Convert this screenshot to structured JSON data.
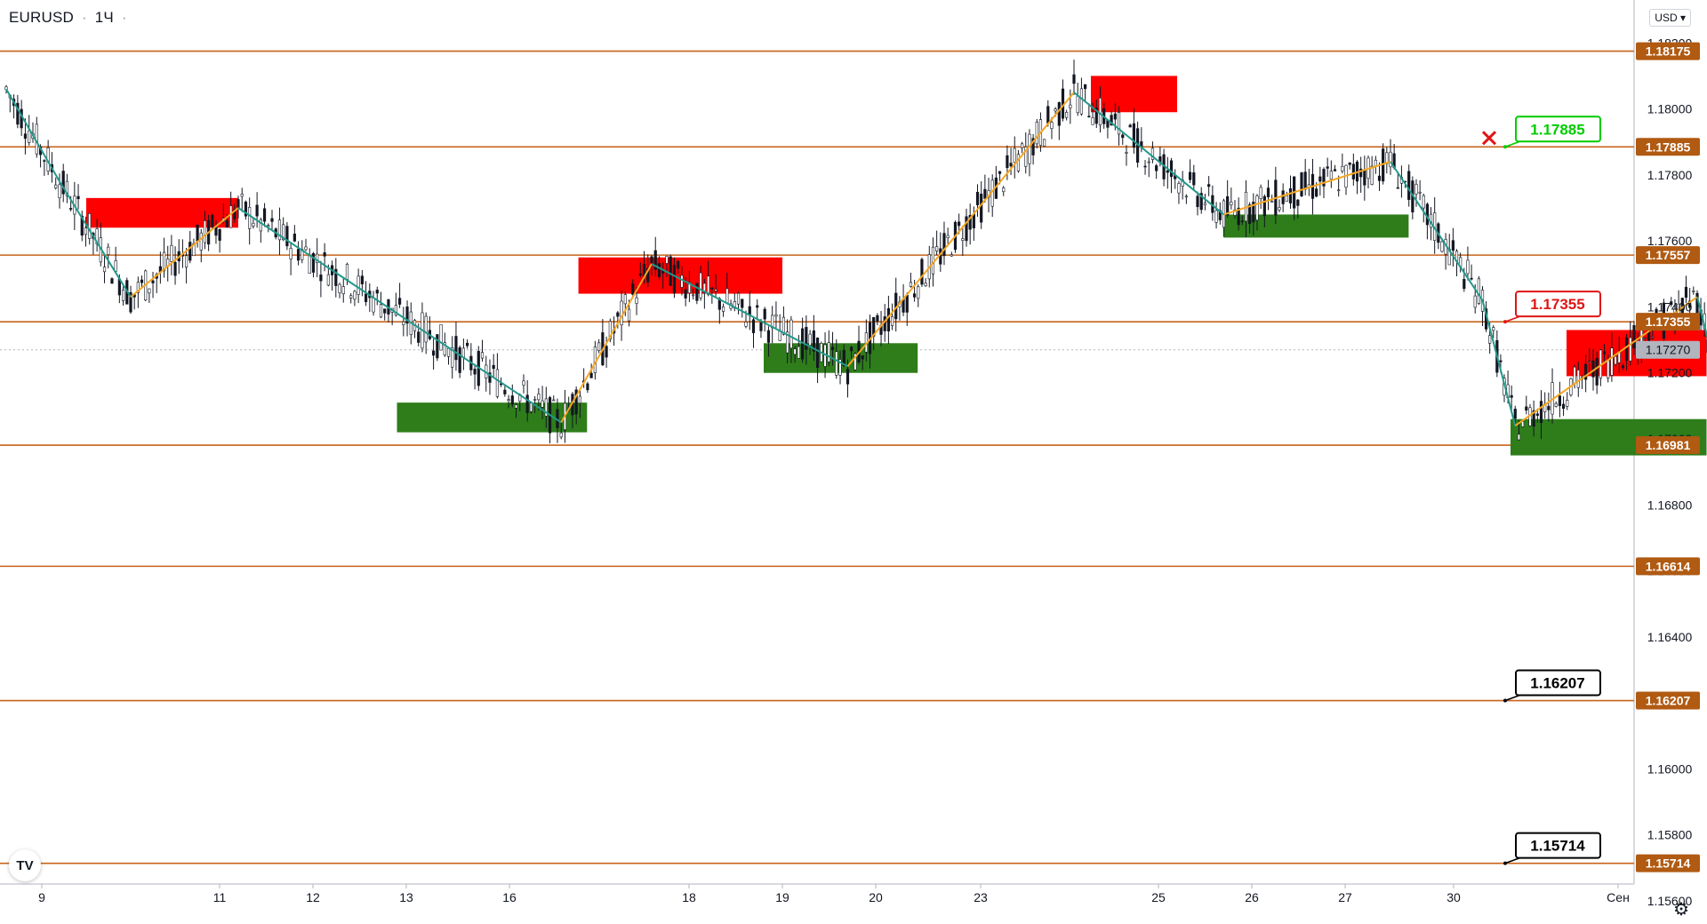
{
  "header": {
    "symbol": "EURUSD",
    "separator": "·",
    "timeframe": "1Ч",
    "extra": "·"
  },
  "currency_button": "USD",
  "logo_text": "TV",
  "settings_icon": "gear-icon",
  "colors": {
    "level_line": "#c8631a",
    "level_label_bg": "#b05a12",
    "current_price_bg": "#b2b5be",
    "supply_zone": "#ff0000",
    "demand_zone": "#2e7d1a",
    "zigzag_up": "#f5a623",
    "zigzag_down": "#22998b",
    "projection": "#1616d8",
    "target_green": "#00cc00",
    "target_red": "#e01515",
    "target_black": "#000000",
    "candle": "#131722"
  },
  "chart_data": {
    "type": "candlestick",
    "symbol": "EURUSD",
    "timeframe": "1H",
    "y_axis": {
      "range": [
        1.1553,
        1.1833
      ],
      "ticks": [
        "1.18200",
        "1.18000",
        "1.17800",
        "1.17600",
        "1.17400",
        "1.17200",
        "1.17000",
        "1.16800",
        "1.16600",
        "1.16400",
        "1.16200",
        "1.16000",
        "1.15800",
        "1.15600"
      ]
    },
    "x_axis": {
      "ticks": [
        "9",
        "11",
        "12",
        "13",
        "16",
        "18",
        "19",
        "20",
        "23",
        "25",
        "26",
        "27",
        "30",
        "Сен"
      ]
    },
    "current_price": "1.17270",
    "levels": [
      {
        "price": 1.18175,
        "label": "1.18175"
      },
      {
        "price": 1.17885,
        "label": "1.17885"
      },
      {
        "price": 1.17557,
        "label": "1.17557"
      },
      {
        "price": 1.17355,
        "label": "1.17355"
      },
      {
        "price": 1.16981,
        "label": "1.16981"
      },
      {
        "price": 1.16614,
        "label": "1.16614"
      },
      {
        "price": 1.16207,
        "label": "1.16207"
      },
      {
        "price": 1.15714,
        "label": "1.15714"
      }
    ],
    "target_labels": [
      {
        "label": "1.17885",
        "price": 1.17885,
        "style": "green",
        "marker": "x"
      },
      {
        "label": "1.17355",
        "price": 1.17355,
        "style": "red"
      },
      {
        "label": "1.16207",
        "price": 1.16207,
        "style": "black"
      },
      {
        "label": "1.15714",
        "price": 1.15714,
        "style": "black"
      }
    ],
    "supply_zones": [
      {
        "x0": 0.5,
        "x1": 2.2,
        "y_hi": 1.1773,
        "y_lo": 1.1764
      },
      {
        "x0": 5.8,
        "x1": 8.0,
        "y_hi": 1.1755,
        "y_lo": 1.1744
      },
      {
        "x0": 11.2,
        "x1": 12.2,
        "y_hi": 1.181,
        "y_lo": 1.1799
      },
      {
        "x0": 16.4,
        "x1": 17.9,
        "y_hi": 1.1733,
        "y_lo": 1.1719
      }
    ],
    "demand_zones": [
      {
        "x0": 3.9,
        "x1": 5.9,
        "y_hi": 1.1711,
        "y_lo": 1.1702
      },
      {
        "x0": 7.8,
        "x1": 9.4,
        "y_hi": 1.1729,
        "y_lo": 1.172
      },
      {
        "x0": 12.7,
        "x1": 14.7,
        "y_hi": 1.1768,
        "y_lo": 1.1761
      },
      {
        "x0": 15.8,
        "x1": 17.9,
        "y_hi": 1.1706,
        "y_lo": 1.1695
      },
      {
        "x0": 18.5,
        "x1": 21.5,
        "y_hi": 1.1671,
        "y_lo": 1.1661
      }
    ],
    "zigzag": [
      {
        "x": -0.4,
        "y": 1.1806
      },
      {
        "x": 0.2,
        "y": 1.1778
      },
      {
        "x": 1.0,
        "y": 1.1743
      },
      {
        "x": 2.2,
        "y": 1.177
      },
      {
        "x": 5.6,
        "y": 1.1705
      },
      {
        "x": 6.6,
        "y": 1.1753
      },
      {
        "x": 8.7,
        "y": 1.1722
      },
      {
        "x": 11.0,
        "y": 1.1805
      },
      {
        "x": 12.7,
        "y": 1.1768
      },
      {
        "x": 14.5,
        "y": 1.1784
      },
      {
        "x": 15.5,
        "y": 1.1742
      },
      {
        "x": 15.85,
        "y": 1.1704
      },
      {
        "x": 17.8,
        "y": 1.1743
      },
      {
        "x": 18.5,
        "y": 1.1665
      },
      {
        "x": 19.3,
        "y": 1.1704
      },
      {
        "x": 21.5,
        "y": 1.1665
      }
    ],
    "projection_path": [
      {
        "x": 23.3,
        "y": 1.1736
      },
      {
        "x": 24.7,
        "y": 1.1682
      },
      {
        "x": 26.3,
        "y": 1.174
      },
      {
        "x": 29.3,
        "y": 1.1622
      },
      {
        "x": 31.2,
        "y": 1.168
      },
      {
        "x": 33.7,
        "y": 1.1578
      }
    ]
  }
}
